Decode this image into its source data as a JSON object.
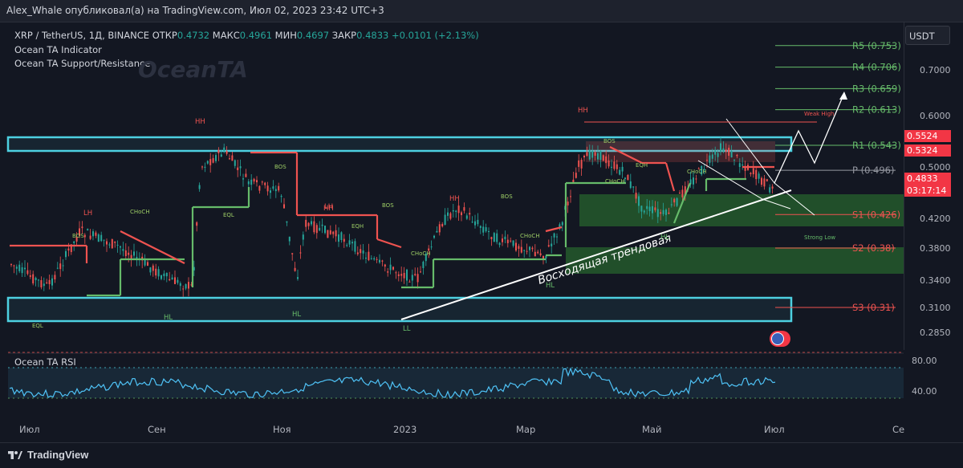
{
  "header": {
    "publish_line": "Alex_Whale опубликовал(а) на TradingView.com, Июл 02, 2023 23:42 UTC+3"
  },
  "legend": {
    "symbol": "XRP / TetherUS, 1Д, BINANCE",
    "open_label": "ОТКР",
    "open_value": "0.4732",
    "high_label": "МАКС",
    "high_value": "0.4961",
    "low_label": "МИН",
    "low_value": "0.4697",
    "close_label": "ЗАКР",
    "close_value": "0.4833",
    "change": "+0.0101 (+2.13%)",
    "indicator_1": "Ocean TA Indicator",
    "indicator_2": "Ocean TA Support/Resistance",
    "watermark": "OceanTA"
  },
  "price_axis": {
    "currency": "USDT",
    "ticks": [
      "0.7000",
      "0.6000",
      "0.5000",
      "0.4200",
      "0.3800",
      "0.3400",
      "0.3100",
      "0.2850"
    ],
    "badges": [
      {
        "label": "0.5524",
        "color": "#f23645"
      },
      {
        "label": "0.5324",
        "color": "#f23645"
      },
      {
        "label": "0.4833",
        "color": "#f23645"
      },
      {
        "label": "03:17:14",
        "color": "#f23645"
      }
    ]
  },
  "rsi": {
    "title": "Ocean TA RSI",
    "ticks": [
      "80.00",
      "40.00"
    ]
  },
  "time_axis": {
    "ticks": [
      "Июл",
      "Сен",
      "Ноя",
      "2023",
      "Мар",
      "Май",
      "Июл",
      "Се"
    ]
  },
  "footer": {
    "brand": "TradingView"
  },
  "colors": {
    "bull": "#26a69a",
    "bear": "#ef5350",
    "zone_cyan": "#4dd0e1",
    "green_level": "#66bb6a",
    "red_level": "#ef5350"
  },
  "chart_data": {
    "type": "candlestick",
    "title": "XRP / TetherUS, 1Д, BINANCE",
    "ylim": [
      0.27,
      0.82
    ],
    "pivot_levels": [
      {
        "name": "R5",
        "label": "R5 (0.753)",
        "value": 0.753
      },
      {
        "name": "R4",
        "label": "R4 (0.706)",
        "value": 0.706
      },
      {
        "name": "R3",
        "label": "R3 (0.659)",
        "value": 0.659
      },
      {
        "name": "R2",
        "label": "R2 (0.613)",
        "value": 0.613
      },
      {
        "name": "R1",
        "label": "R1 (0.543)",
        "value": 0.543
      },
      {
        "name": "P",
        "label": "P (0.496)",
        "value": 0.496
      },
      {
        "name": "S1",
        "label": "S1 (0.426)",
        "value": 0.426
      },
      {
        "name": "S2",
        "label": "S2 (0.38)",
        "value": 0.38
      },
      {
        "name": "S3",
        "label": "S3 (0.31)",
        "value": 0.31
      }
    ],
    "annotations": {
      "trendline": "Восходящая трендовая",
      "weak_high": "Weak High",
      "strong_low": "Strong Low",
      "swing_labels": [
        "HH",
        "HH",
        "HH",
        "HH",
        "LH",
        "LH",
        "HL",
        "HL",
        "HL",
        "LL",
        "HL"
      ],
      "structure_labels": [
        "BOS",
        "BOS",
        "BOS",
        "BOS",
        "BOS",
        "CHoCH",
        "CHoCH",
        "CHoCH",
        "CHoCH",
        "CHoCH",
        "EQL",
        "EQL",
        "EQH",
        "EQH"
      ]
    }
  }
}
